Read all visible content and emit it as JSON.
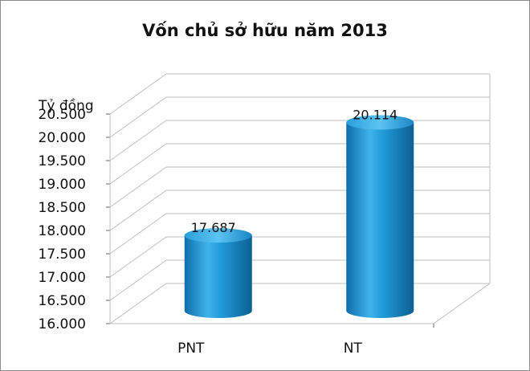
{
  "chart_data": {
    "type": "bar",
    "title": "Vốn chủ sở hữu năm 2013",
    "ylabel": "Tỷ đồng",
    "xlabel": "",
    "categories": [
      "PNT",
      "NT"
    ],
    "values": [
      17687,
      20114
    ],
    "value_labels": [
      "17.687",
      "20.114"
    ],
    "ylim": [
      16000,
      20500
    ],
    "yticks": [
      16000,
      16500,
      17000,
      17500,
      18000,
      18500,
      19000,
      19500,
      20000,
      20500
    ],
    "ytick_labels": [
      "16.000",
      "16.500",
      "17.000",
      "17.500",
      "18.000",
      "18.500",
      "19.000",
      "19.500",
      "20.000",
      "20.500"
    ],
    "grid": true,
    "style": "3d-cylinder",
    "bar_color": "#1f9ad8"
  }
}
